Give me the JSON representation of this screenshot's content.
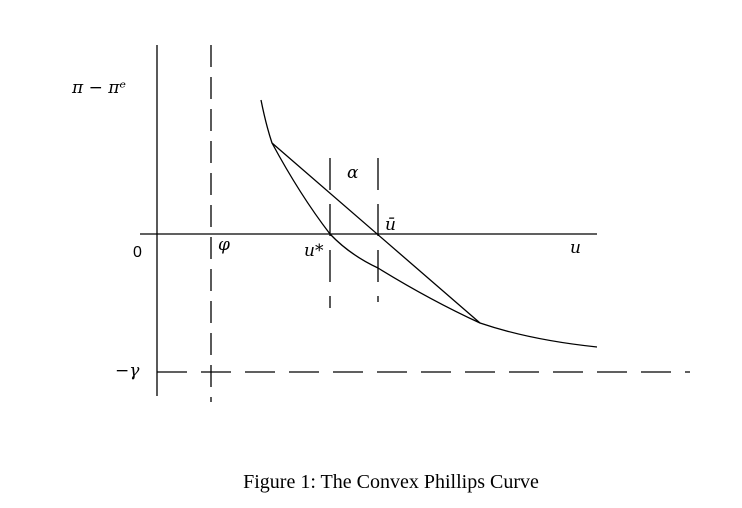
{
  "figure": {
    "labels": {
      "y_axis": "π − πᵉ",
      "origin": "0",
      "gamma": "−γ",
      "phi": "φ",
      "u_star": "u*",
      "u_bar": "ū",
      "alpha": "α",
      "x_axis": "u"
    },
    "caption": "Figure 1: The Convex Phillips Curve"
  }
}
